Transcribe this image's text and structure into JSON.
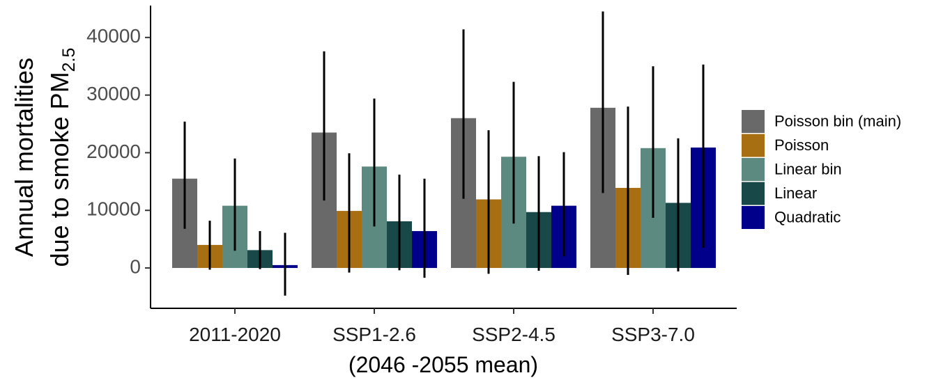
{
  "chart_data": {
    "type": "bar",
    "categories": [
      "2011-2020",
      "SSP1-2.6",
      "SSP2-4.5",
      "SSP3-7.0"
    ],
    "series": [
      {
        "name": "Poisson bin (main)",
        "color": "#696969",
        "values": [
          15500,
          23500,
          26000,
          27800
        ],
        "err_low": [
          6800,
          11700,
          12000,
          13000
        ],
        "err_high": [
          25400,
          37600,
          41400,
          44500
        ]
      },
      {
        "name": "Poisson",
        "color": "#A86F12",
        "values": [
          4000,
          9900,
          11900,
          13900
        ],
        "err_low": [
          -300,
          -800,
          -1000,
          -1200
        ],
        "err_high": [
          8200,
          19900,
          23900,
          28000
        ]
      },
      {
        "name": "Linear bin",
        "color": "#5C8A80",
        "values": [
          10800,
          17600,
          19300,
          20800
        ],
        "err_low": [
          3000,
          7200,
          7700,
          8700
        ],
        "err_high": [
          19000,
          29400,
          32300,
          35000
        ]
      },
      {
        "name": "Linear",
        "color": "#184848",
        "values": [
          3100,
          8100,
          9700,
          11300
        ],
        "err_low": [
          -200,
          -400,
          -500,
          -600
        ],
        "err_high": [
          6400,
          16200,
          19400,
          22500
        ]
      },
      {
        "name": "Quadratic",
        "color": "#00008B",
        "values": [
          500,
          6400,
          10800,
          20900
        ],
        "err_low": [
          -4800,
          -1700,
          2000,
          3500
        ],
        "err_high": [
          6100,
          15500,
          20100,
          35300
        ]
      }
    ],
    "ylim": [
      -7000,
      46500
    ],
    "yticks": [
      0,
      10000,
      20000,
      30000,
      40000
    ],
    "ytick_labels": [
      "0",
      "10000",
      "20000",
      "30000",
      "40000"
    ],
    "ylabel_line1": "Annual mortalities",
    "ylabel_line2_prefix": "due to smoke PM",
    "ylabel_line2_subscript": "2.5",
    "xlabel": "(2046 -2055 mean)",
    "grid": false,
    "legend_position": "right"
  }
}
